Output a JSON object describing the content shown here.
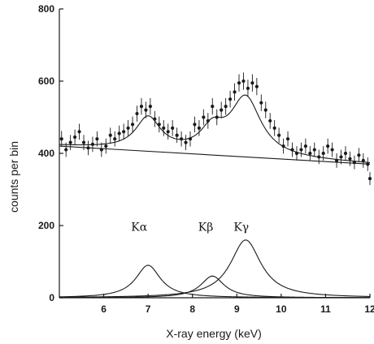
{
  "chart_data": {
    "type": "scatter",
    "title": "",
    "xlabel": "X-ray energy (keV)",
    "ylabel": "counts per bin",
    "xlim": [
      5,
      12
    ],
    "ylim": [
      0,
      800
    ],
    "xticks": [
      6,
      7,
      8,
      9,
      10,
      11,
      12
    ],
    "yticks": [
      0,
      200,
      400,
      600,
      800
    ],
    "grid": false,
    "background_line": {
      "x": [
        5,
        12
      ],
      "y": [
        420,
        370
      ]
    },
    "components": [
      {
        "name": "Kα",
        "center": 7.0,
        "height": 90,
        "width": 0.34
      },
      {
        "name": "Kβ",
        "center": 8.45,
        "height": 60,
        "width": 0.32
      },
      {
        "name": "Kγ",
        "center": 9.2,
        "height": 160,
        "width": 0.42
      }
    ],
    "peak_labels": [
      {
        "text": "Kα",
        "x": 6.8,
        "y": 185
      },
      {
        "text": "Kβ",
        "x": 8.3,
        "y": 185
      },
      {
        "text": "Kγ",
        "x": 9.1,
        "y": 185
      }
    ],
    "points": [
      {
        "x": 5.05,
        "y": 440,
        "err": 22
      },
      {
        "x": 5.15,
        "y": 410,
        "err": 20
      },
      {
        "x": 5.25,
        "y": 430,
        "err": 21
      },
      {
        "x": 5.35,
        "y": 445,
        "err": 21
      },
      {
        "x": 5.45,
        "y": 460,
        "err": 22
      },
      {
        "x": 5.55,
        "y": 430,
        "err": 21
      },
      {
        "x": 5.65,
        "y": 415,
        "err": 20
      },
      {
        "x": 5.75,
        "y": 425,
        "err": 21
      },
      {
        "x": 5.85,
        "y": 440,
        "err": 21
      },
      {
        "x": 5.95,
        "y": 410,
        "err": 20
      },
      {
        "x": 6.05,
        "y": 420,
        "err": 21
      },
      {
        "x": 6.15,
        "y": 450,
        "err": 21
      },
      {
        "x": 6.25,
        "y": 440,
        "err": 21
      },
      {
        "x": 6.35,
        "y": 455,
        "err": 22
      },
      {
        "x": 6.45,
        "y": 460,
        "err": 22
      },
      {
        "x": 6.55,
        "y": 470,
        "err": 22
      },
      {
        "x": 6.65,
        "y": 480,
        "err": 22
      },
      {
        "x": 6.75,
        "y": 510,
        "err": 22
      },
      {
        "x": 6.85,
        "y": 530,
        "err": 23
      },
      {
        "x": 6.95,
        "y": 520,
        "err": 23
      },
      {
        "x": 7.05,
        "y": 530,
        "err": 23
      },
      {
        "x": 7.15,
        "y": 495,
        "err": 22
      },
      {
        "x": 7.25,
        "y": 480,
        "err": 22
      },
      {
        "x": 7.35,
        "y": 470,
        "err": 22
      },
      {
        "x": 7.45,
        "y": 460,
        "err": 22
      },
      {
        "x": 7.55,
        "y": 470,
        "err": 22
      },
      {
        "x": 7.65,
        "y": 450,
        "err": 21
      },
      {
        "x": 7.75,
        "y": 440,
        "err": 21
      },
      {
        "x": 7.85,
        "y": 430,
        "err": 21
      },
      {
        "x": 7.95,
        "y": 440,
        "err": 21
      },
      {
        "x": 8.05,
        "y": 480,
        "err": 22
      },
      {
        "x": 8.15,
        "y": 470,
        "err": 22
      },
      {
        "x": 8.25,
        "y": 500,
        "err": 22
      },
      {
        "x": 8.35,
        "y": 490,
        "err": 22
      },
      {
        "x": 8.45,
        "y": 530,
        "err": 23
      },
      {
        "x": 8.55,
        "y": 500,
        "err": 22
      },
      {
        "x": 8.65,
        "y": 520,
        "err": 23
      },
      {
        "x": 8.75,
        "y": 530,
        "err": 23
      },
      {
        "x": 8.85,
        "y": 550,
        "err": 23
      },
      {
        "x": 8.95,
        "y": 570,
        "err": 24
      },
      {
        "x": 9.05,
        "y": 595,
        "err": 24
      },
      {
        "x": 9.15,
        "y": 600,
        "err": 24
      },
      {
        "x": 9.25,
        "y": 580,
        "err": 24
      },
      {
        "x": 9.35,
        "y": 595,
        "err": 24
      },
      {
        "x": 9.45,
        "y": 585,
        "err": 24
      },
      {
        "x": 9.55,
        "y": 540,
        "err": 23
      },
      {
        "x": 9.65,
        "y": 520,
        "err": 23
      },
      {
        "x": 9.75,
        "y": 490,
        "err": 22
      },
      {
        "x": 9.85,
        "y": 470,
        "err": 22
      },
      {
        "x": 9.95,
        "y": 450,
        "err": 21
      },
      {
        "x": 10.05,
        "y": 420,
        "err": 21
      },
      {
        "x": 10.15,
        "y": 440,
        "err": 21
      },
      {
        "x": 10.25,
        "y": 410,
        "err": 20
      },
      {
        "x": 10.35,
        "y": 400,
        "err": 20
      },
      {
        "x": 10.45,
        "y": 410,
        "err": 20
      },
      {
        "x": 10.55,
        "y": 420,
        "err": 21
      },
      {
        "x": 10.65,
        "y": 400,
        "err": 20
      },
      {
        "x": 10.75,
        "y": 410,
        "err": 20
      },
      {
        "x": 10.85,
        "y": 390,
        "err": 20
      },
      {
        "x": 10.95,
        "y": 400,
        "err": 20
      },
      {
        "x": 11.05,
        "y": 420,
        "err": 21
      },
      {
        "x": 11.15,
        "y": 410,
        "err": 20
      },
      {
        "x": 11.25,
        "y": 380,
        "err": 20
      },
      {
        "x": 11.35,
        "y": 390,
        "err": 20
      },
      {
        "x": 11.45,
        "y": 400,
        "err": 20
      },
      {
        "x": 11.55,
        "y": 385,
        "err": 20
      },
      {
        "x": 11.65,
        "y": 375,
        "err": 19
      },
      {
        "x": 11.75,
        "y": 395,
        "err": 20
      },
      {
        "x": 11.85,
        "y": 380,
        "err": 20
      },
      {
        "x": 11.95,
        "y": 370,
        "err": 19
      },
      {
        "x": 12.0,
        "y": 330,
        "err": 18
      }
    ]
  }
}
